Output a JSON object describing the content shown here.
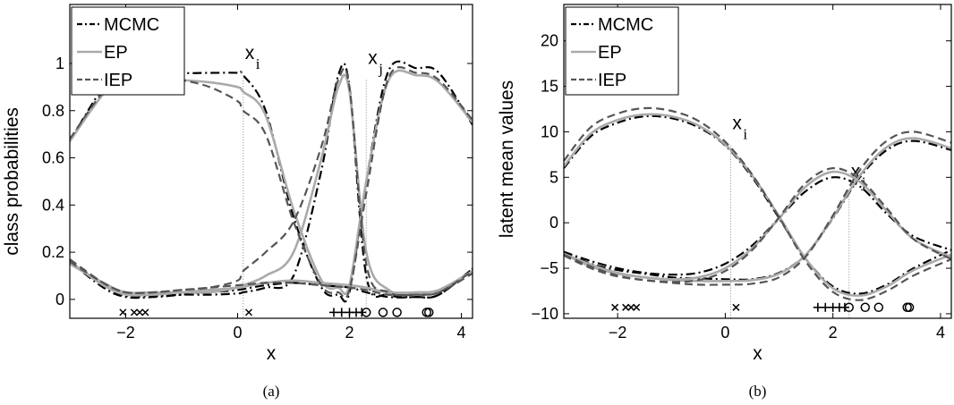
{
  "chart_data": [
    {
      "type": "line",
      "panel_label": "(a)",
      "xlabel": "x",
      "ylabel": "class probabilities",
      "xlim": [
        -3,
        4.2
      ],
      "ylim": [
        -0.08,
        1.25
      ],
      "xticks": [
        -2,
        0,
        2,
        4
      ],
      "yticks": [
        0,
        0.2,
        0.4,
        0.6,
        0.8,
        1
      ],
      "xtick_labels": [
        "−2",
        "0",
        "2",
        "4"
      ],
      "ytick_labels": [
        "0",
        "0.2",
        "0.4",
        "0.6",
        "0.8",
        "1"
      ],
      "legend": {
        "location": "top-left",
        "entries": [
          "MCMC",
          "EP",
          "IEP"
        ]
      },
      "vlines": [
        {
          "x": 0.1,
          "label": "x",
          "sub": "i"
        },
        {
          "x": 2.3,
          "label": "x",
          "sub": "j"
        }
      ],
      "series": [
        {
          "name": "MCMC",
          "class": "1",
          "style": "dashdot",
          "color": "#000000",
          "x": [
            -3,
            -2.4,
            -2,
            -1.5,
            -1,
            -0.5,
            0,
            0.1,
            0.5,
            1,
            1.5,
            1.8,
            2,
            2.3,
            2.7,
            3.2,
            3.6,
            4.2
          ],
          "y": [
            0.16,
            0.06,
            0.015,
            0.015,
            0.02,
            0.02,
            0.025,
            0.03,
            0.05,
            0.1,
            0.55,
            0.95,
            0.9,
            0.1,
            0.02,
            0.01,
            0.02,
            0.13
          ]
        },
        {
          "name": "MCMC",
          "class": "2",
          "style": "dashdot",
          "color": "#000000",
          "x": [
            -3,
            -2.4,
            -2,
            -1.5,
            -1,
            -0.5,
            0,
            0.1,
            0.5,
            1,
            1.5,
            1.8,
            2,
            2.3,
            2.7,
            3.2,
            3.6,
            4.2
          ],
          "y": [
            0.67,
            0.9,
            0.98,
            0.975,
            0.96,
            0.96,
            0.96,
            0.95,
            0.8,
            0.35,
            0.05,
            0.02,
            0.03,
            0.5,
            0.97,
            0.98,
            0.96,
            0.74
          ]
        },
        {
          "name": "MCMC",
          "class": "3",
          "style": "dashdot",
          "color": "#000000",
          "x": [
            -3,
            -2.4,
            -2,
            -1.5,
            -1,
            -0.5,
            0,
            0.5,
            1,
            1.5,
            2,
            2.3,
            2.7,
            3.2,
            3.6,
            4.2
          ],
          "y": [
            0.16,
            0.05,
            0.01,
            0.01,
            0.02,
            0.03,
            0.04,
            0.06,
            0.07,
            0.06,
            0.05,
            0.03,
            0.01,
            0.01,
            0.02,
            0.13
          ]
        },
        {
          "name": "EP",
          "class": "1",
          "style": "solid",
          "color": "#aaaaaa",
          "x": [
            -3,
            -2.4,
            -2,
            -1.5,
            -1,
            -0.5,
            0,
            0.1,
            0.5,
            1,
            1.5,
            1.8,
            2,
            2.3,
            2.7,
            3.2,
            3.6,
            4.2
          ],
          "y": [
            0.15,
            0.07,
            0.03,
            0.03,
            0.03,
            0.03,
            0.05,
            0.06,
            0.1,
            0.2,
            0.6,
            0.9,
            0.88,
            0.2,
            0.04,
            0.03,
            0.04,
            0.12
          ]
        },
        {
          "name": "EP",
          "class": "2",
          "style": "solid",
          "color": "#aaaaaa",
          "x": [
            -3,
            -2.4,
            -2,
            -1.5,
            -1,
            -0.5,
            0,
            0.1,
            0.5,
            1,
            1.5,
            1.8,
            2,
            2.3,
            2.7,
            3.2,
            3.6,
            4.2
          ],
          "y": [
            0.67,
            0.87,
            0.93,
            0.94,
            0.93,
            0.92,
            0.9,
            0.88,
            0.78,
            0.38,
            0.08,
            0.05,
            0.06,
            0.5,
            0.93,
            0.95,
            0.92,
            0.75
          ]
        },
        {
          "name": "EP",
          "class": "3",
          "style": "solid",
          "color": "#aaaaaa",
          "x": [
            -3,
            -2.4,
            -2,
            -1.5,
            -1,
            -0.5,
            0,
            0.5,
            1,
            1.5,
            2,
            2.3,
            2.7,
            3.2,
            3.6,
            4.2
          ],
          "y": [
            0.16,
            0.06,
            0.02,
            0.02,
            0.03,
            0.04,
            0.05,
            0.07,
            0.08,
            0.07,
            0.06,
            0.05,
            0.03,
            0.03,
            0.04,
            0.12
          ]
        },
        {
          "name": "IEP",
          "class": "1",
          "style": "dashed",
          "color": "#555555",
          "x": [
            -3,
            -2.4,
            -2,
            -1.5,
            -1,
            -0.5,
            0,
            0.1,
            0.5,
            1,
            1.5,
            1.8,
            2,
            2.3,
            2.7,
            3.2,
            3.6,
            4.2
          ],
          "y": [
            0.16,
            0.07,
            0.03,
            0.03,
            0.04,
            0.05,
            0.08,
            0.12,
            0.2,
            0.33,
            0.65,
            0.93,
            0.9,
            0.15,
            0.03,
            0.02,
            0.03,
            0.12
          ]
        },
        {
          "name": "IEP",
          "class": "2",
          "style": "dashed",
          "color": "#555555",
          "x": [
            -3,
            -2.4,
            -2,
            -1.5,
            -1,
            -0.5,
            0,
            0.1,
            0.5,
            1,
            1.5,
            1.8,
            2,
            2.3,
            2.7,
            3.2,
            3.6,
            4.2
          ],
          "y": [
            0.68,
            0.88,
            0.94,
            0.95,
            0.93,
            0.9,
            0.84,
            0.8,
            0.7,
            0.33,
            0.06,
            0.03,
            0.04,
            0.45,
            0.94,
            0.96,
            0.93,
            0.76
          ]
        },
        {
          "name": "IEP",
          "class": "3",
          "style": "dashed",
          "color": "#555555",
          "x": [
            -3,
            -2.4,
            -2,
            -1.5,
            -1,
            -0.5,
            0,
            0.5,
            1,
            1.5,
            2,
            2.3,
            2.7,
            3.2,
            3.6,
            4.2
          ],
          "y": [
            0.17,
            0.07,
            0.03,
            0.03,
            0.04,
            0.05,
            0.06,
            0.07,
            0.07,
            0.06,
            0.05,
            0.04,
            0.02,
            0.02,
            0.03,
            0.11
          ]
        }
      ],
      "data_markers": {
        "y": -0.055,
        "cross": [
          -2.05,
          -1.85,
          -1.75,
          -1.65,
          0.2
        ],
        "plus": [
          1.72,
          1.86,
          2.0,
          2.12,
          2.22
        ],
        "circle": [
          2.3,
          2.6,
          2.85,
          3.38,
          3.42
        ]
      }
    },
    {
      "type": "line",
      "panel_label": "(b)",
      "xlabel": "x",
      "ylabel": "latent mean values",
      "xlim": [
        -3,
        4.2
      ],
      "ylim": [
        -10.5,
        24
      ],
      "xticks": [
        -2,
        0,
        2,
        4
      ],
      "yticks": [
        -10,
        -5,
        0,
        5,
        10,
        15,
        20
      ],
      "xtick_labels": [
        "−2",
        "0",
        "2",
        "4"
      ],
      "ytick_labels": [
        "−10",
        "−5",
        "0",
        "5",
        "10",
        "15",
        "20"
      ],
      "legend": {
        "location": "top-left",
        "entries": [
          "MCMC",
          "EP",
          "IEP"
        ]
      },
      "vlines": [
        {
          "x": 0.1,
          "label": "x",
          "sub": "i"
        },
        {
          "x": 2.3,
          "label": "x",
          "sub": "j"
        }
      ],
      "series": [
        {
          "name": "MCMC",
          "class": "1",
          "style": "dashdot",
          "color": "#000000",
          "x": [
            -3,
            -2.5,
            -2,
            -1.5,
            -1,
            -0.5,
            0,
            0.5,
            1,
            1.5,
            2,
            2.5,
            3,
            3.5,
            4.2
          ],
          "y": [
            6,
            9.5,
            11,
            11.7,
            11.5,
            10.5,
            8.5,
            5,
            0.5,
            -4,
            -7,
            -7.8,
            -6.8,
            -5,
            -3
          ]
        },
        {
          "name": "MCMC",
          "class": "2",
          "style": "dashdot",
          "color": "#000000",
          "x": [
            -3,
            -2.5,
            -2,
            -1.5,
            -1,
            -0.5,
            0,
            0.5,
            1,
            1.5,
            2,
            2.5,
            3,
            3.5,
            4.2
          ],
          "y": [
            -3.2,
            -4.2,
            -5,
            -5.5,
            -5.7,
            -5.5,
            -4.5,
            -2.5,
            0.5,
            3.5,
            5,
            4,
            1,
            -1.5,
            -3
          ]
        },
        {
          "name": "MCMC",
          "class": "3",
          "style": "dashdot",
          "color": "#000000",
          "x": [
            -3,
            -2.5,
            -2,
            -1.5,
            -1,
            -0.5,
            0,
            0.5,
            1,
            1.5,
            2,
            2.5,
            3,
            3.5,
            4.2
          ],
          "y": [
            -3.2,
            -4.5,
            -5.2,
            -5.6,
            -6,
            -6.1,
            -6.2,
            -6.2,
            -5.5,
            -3.5,
            0.5,
            5,
            8,
            9,
            8
          ]
        },
        {
          "name": "EP",
          "class": "1",
          "style": "solid",
          "color": "#aaaaaa",
          "x": [
            -3,
            -2.5,
            -2,
            -1.5,
            -1,
            -0.5,
            0,
            0.5,
            1,
            1.5,
            2,
            2.5,
            3,
            3.5,
            4.2
          ],
          "y": [
            6.2,
            9.8,
            11.3,
            11.9,
            11.7,
            10.7,
            8.6,
            5.2,
            0.7,
            -4,
            -7.2,
            -8,
            -7,
            -5.2,
            -3.5
          ]
        },
        {
          "name": "EP",
          "class": "2",
          "style": "solid",
          "color": "#aaaaaa",
          "x": [
            -3,
            -2.5,
            -2,
            -1.5,
            -1,
            -0.5,
            0,
            0.5,
            1,
            1.5,
            2,
            2.5,
            3,
            3.5,
            4.2
          ],
          "y": [
            -3.4,
            -4.6,
            -5.5,
            -6,
            -6.2,
            -6,
            -5,
            -2.8,
            0.5,
            4,
            5.6,
            4.5,
            1.3,
            -1.8,
            -3.8
          ]
        },
        {
          "name": "EP",
          "class": "3",
          "style": "solid",
          "color": "#aaaaaa",
          "x": [
            -3,
            -2.5,
            -2,
            -1.5,
            -1,
            -0.5,
            0,
            0.5,
            1,
            1.5,
            2,
            2.5,
            3,
            3.5,
            4.2
          ],
          "y": [
            -3.4,
            -4.8,
            -5.6,
            -6,
            -6.3,
            -6.4,
            -6.4,
            -6.3,
            -5.6,
            -3.5,
            0.6,
            5.2,
            8.3,
            9.3,
            8.2
          ]
        },
        {
          "name": "IEP",
          "class": "1",
          "style": "dashed",
          "color": "#555555",
          "x": [
            -3,
            -2.5,
            -2,
            -1.5,
            -1,
            -0.5,
            0,
            0.5,
            1,
            1.5,
            2,
            2.5,
            3,
            3.5,
            4.2
          ],
          "y": [
            6.8,
            10.5,
            12,
            12.6,
            12.3,
            11.2,
            8.9,
            5.3,
            0.6,
            -4.3,
            -7.6,
            -8.5,
            -7.5,
            -5.8,
            -4
          ]
        },
        {
          "name": "IEP",
          "class": "2",
          "style": "dashed",
          "color": "#555555",
          "x": [
            -3,
            -2.5,
            -2,
            -1.5,
            -1,
            -0.5,
            0,
            0.5,
            1,
            1.5,
            2,
            2.5,
            3,
            3.5,
            4.2
          ],
          "y": [
            -3.5,
            -4.8,
            -5.8,
            -6.3,
            -6.5,
            -6.3,
            -5.3,
            -3,
            0.6,
            4.4,
            6,
            4.8,
            1.6,
            -1.8,
            -4
          ]
        },
        {
          "name": "IEP",
          "class": "3",
          "style": "dashed",
          "color": "#555555",
          "x": [
            -3,
            -2.5,
            -2,
            -1.5,
            -1,
            -0.5,
            0,
            0.5,
            1,
            1.5,
            2,
            2.5,
            3,
            3.5,
            4.2
          ],
          "y": [
            -3.6,
            -5,
            -5.9,
            -6.3,
            -6.6,
            -6.8,
            -6.8,
            -6.7,
            -6,
            -3.7,
            0.8,
            5.8,
            9,
            10,
            8.8
          ]
        }
      ],
      "data_markers": {
        "y": -9.3,
        "cross": [
          -2.05,
          -1.85,
          -1.75,
          -1.65,
          0.2
        ],
        "plus": [
          1.72,
          1.86,
          2.0,
          2.12,
          2.22
        ],
        "circle": [
          2.3,
          2.6,
          2.85,
          3.38,
          3.42
        ]
      }
    }
  ],
  "colors": {
    "MCMC": "#000000",
    "EP": "#aaaaaa",
    "IEP": "#555555",
    "guide": "#888888"
  }
}
